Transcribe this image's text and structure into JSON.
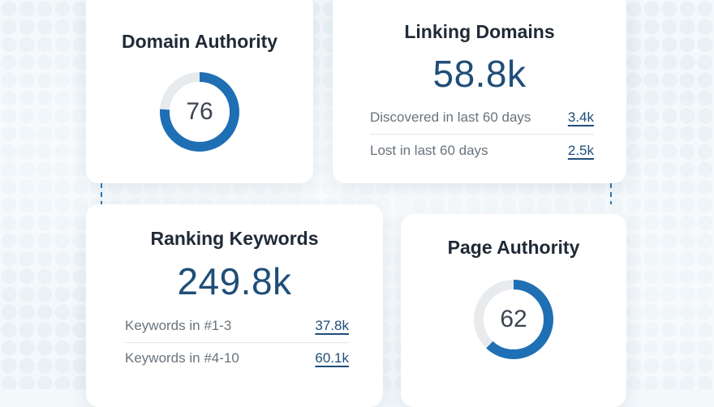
{
  "cards": {
    "domain_authority": {
      "title": "Domain Authority",
      "score": "76",
      "level": 76
    },
    "linking_domains": {
      "title": "Linking Domains",
      "value": "58.8k",
      "rows": [
        {
          "label": "Discovered in last 60 days",
          "value": "3.4k"
        },
        {
          "label": "Lost in last 60 days",
          "value": "2.5k"
        }
      ]
    },
    "ranking_keywords": {
      "title": "Ranking Keywords",
      "value": "249.8k",
      "rows": [
        {
          "label": "Keywords in #1-3",
          "value": "37.8k"
        },
        {
          "label": "Keywords in #4-10",
          "value": "60.1k"
        }
      ]
    },
    "page_authority": {
      "title": "Page Authority",
      "score": "62",
      "level": 62
    }
  },
  "colors": {
    "accent": "#1f6fb5",
    "track": "#e8ebee",
    "number": "#1f4e79"
  }
}
